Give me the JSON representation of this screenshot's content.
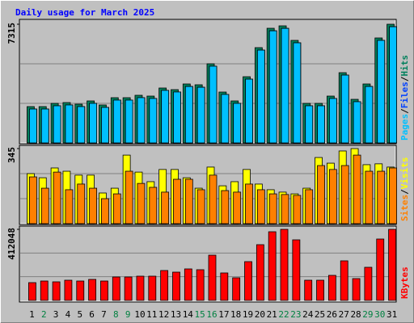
{
  "chart_data": [
    {
      "type": "bar",
      "title": "Daily usage for March 2025",
      "legend_separator": "/",
      "ylim": [
        0,
        7315
      ],
      "yticks": [
        7315
      ],
      "series": [
        {
          "name": "Hits",
          "color": "#00805c",
          "values": [
            2239,
            2239,
            2438,
            2488,
            2389,
            2588,
            2339,
            2787,
            2787,
            2936,
            2886,
            3384,
            3284,
            3633,
            3583,
            4877,
            3135,
            2588,
            4080,
            5872,
            7066,
            7215,
            6320,
            2438,
            2438,
            2886,
            4329,
            2687,
            3633,
            6469,
            7315
          ]
        },
        {
          "name": "Files",
          "color": "#0040ff",
          "values": [
            2090,
            2090,
            2290,
            2340,
            2240,
            2440,
            2190,
            2640,
            2640,
            2790,
            2740,
            3240,
            3140,
            3480,
            3430,
            4730,
            2990,
            2440,
            3930,
            5720,
            6910,
            7060,
            6170,
            2290,
            2290,
            2740,
            4180,
            2540,
            3480,
            6320,
            7160
          ]
        },
        {
          "name": "Pages",
          "color": "#00c0ff",
          "values": [
            2090,
            2090,
            2290,
            2340,
            2240,
            2440,
            2190,
            2640,
            2640,
            2790,
            2740,
            3240,
            3140,
            3480,
            3430,
            4730,
            2990,
            2440,
            3930,
            5720,
            6910,
            7060,
            6170,
            2290,
            2290,
            2740,
            4180,
            2540,
            3480,
            6320,
            7160
          ]
        }
      ]
    },
    {
      "type": "bar",
      "legend_separator": "/",
      "ylim": [
        0,
        345
      ],
      "yticks": [
        345
      ],
      "series": [
        {
          "name": "Visits",
          "color": "#ffff00",
          "values": [
            230,
            211,
            256,
            241,
            223,
            223,
            141,
            163,
            315,
            237,
            193,
            249,
            249,
            211,
            163,
            260,
            174,
            193,
            249,
            182,
            156,
            145,
            137,
            163,
            304,
            278,
            334,
            345,
            271,
            275,
            260
          ]
        },
        {
          "name": "Sites",
          "color": "#ff8000",
          "values": [
            215,
            163,
            237,
            156,
            182,
            163,
            115,
            137,
            241,
            185,
            167,
            145,
            204,
            204,
            156,
            223,
            152,
            145,
            182,
            156,
            137,
            134,
            130,
            156,
            267,
            249,
            267,
            315,
            241,
            241,
            256
          ]
        }
      ]
    },
    {
      "type": "bar",
      "ylim": [
        0,
        412048
      ],
      "yticks": [
        412048
      ],
      "categories": [
        "1",
        "2",
        "3",
        "4",
        "5",
        "6",
        "7",
        "8",
        "9",
        "10",
        "11",
        "12",
        "13",
        "14",
        "15",
        "16",
        "17",
        "18",
        "19",
        "20",
        "21",
        "22",
        "23",
        "24",
        "25",
        "26",
        "27",
        "28",
        "29",
        "30",
        "31"
      ],
      "category_colors": [
        "#000000",
        "#008040",
        "#000000",
        "#000000",
        "#000000",
        "#000000",
        "#000000",
        "#008040",
        "#008040",
        "#000000",
        "#000000",
        "#000000",
        "#000000",
        "#000000",
        "#008040",
        "#008040",
        "#000000",
        "#000000",
        "#000000",
        "#000000",
        "#000000",
        "#008040",
        "#008040",
        "#000000",
        "#000000",
        "#000000",
        "#000000",
        "#000000",
        "#008040",
        "#008040",
        "#000000"
      ],
      "series": [
        {
          "name": "KBytes",
          "color": "#ff0000",
          "values": [
            103012,
            112377,
            107694,
            117059,
            112377,
            121741,
            112377,
            135788,
            135788,
            140471,
            140471,
            173247,
            163882,
            182611,
            177929,
            262212,
            159200,
            131106,
            224753,
            323083,
            398001,
            412048,
            351177,
            117059,
            117059,
            145153,
            229436,
            126424,
            191977,
            355859,
            412048
          ]
        }
      ]
    }
  ]
}
